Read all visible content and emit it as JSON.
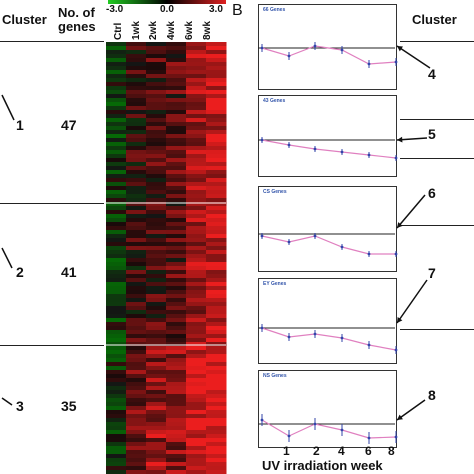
{
  "panel_b_label": "B",
  "left": {
    "header_cluster": "Cluster",
    "header_genes": "No. of genes",
    "columns": [
      "Ctrl",
      "1wk",
      "2wk",
      "4wk",
      "6wk",
      "8wk"
    ],
    "scale": {
      "min": "-3.0",
      "mid": "0.0",
      "max": "3.0"
    },
    "clusters": [
      {
        "id": "1",
        "genes": "47"
      },
      {
        "id": "2",
        "genes": "41"
      },
      {
        "id": "3",
        "genes": "35"
      }
    ]
  },
  "right": {
    "header_cluster": "Cluster",
    "xlabel": "UV irradiation week",
    "xticks": [
      "1",
      "2",
      "4",
      "6",
      "8"
    ],
    "panels": [
      {
        "id": "4",
        "title": "66 Genes"
      },
      {
        "id": "5",
        "title": "43 Genes"
      },
      {
        "id": "6",
        "title": "CS Genes"
      },
      {
        "id": "7",
        "title": "EY Genes"
      },
      {
        "id": "8",
        "title": "NS Genes"
      }
    ]
  },
  "colors": {
    "heat_red": "#e02020",
    "heat_green": "#22aa22",
    "line": "#e080c0",
    "marker": "#3344aa"
  }
}
